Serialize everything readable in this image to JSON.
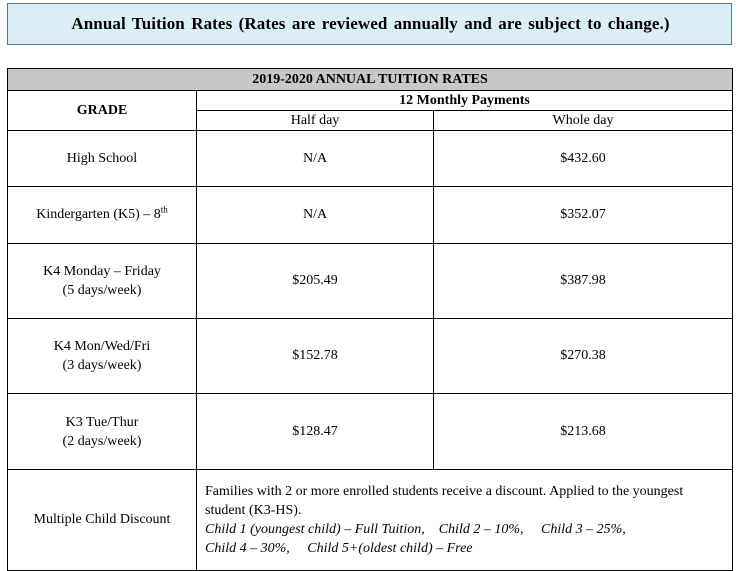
{
  "banner": {
    "title": "Annual  Tuition  Rates  (Rates are reviewed annually and are subject to change.)"
  },
  "table": {
    "title": "2019-2020 ANNUAL TUITION RATES",
    "grade_header": "GRADE",
    "payments_header": "12 Monthly Payments",
    "half_day_header": "Half day",
    "whole_day_header": "Whole day",
    "rows": [
      {
        "grade_line1": "High School",
        "grade_line2": "",
        "half": "N/A",
        "whole": "$432.60"
      },
      {
        "grade_line1": "Kindergarten (K5) – 8",
        "grade_sup": "th",
        "half": "N/A",
        "whole": "$352.07"
      },
      {
        "grade_line1": "K4 Monday – Friday",
        "grade_line2": "(5 days/week)",
        "half": "$205.49",
        "whole": "$387.98"
      },
      {
        "grade_line1": "K4 Mon/Wed/Fri",
        "grade_line2": "(3 days/week)",
        "half": "$152.78",
        "whole": "$270.38"
      },
      {
        "grade_line1": "K3 Tue/Thur",
        "grade_line2": "(2 days/week)",
        "half": "$128.47",
        "whole": "$213.68"
      }
    ],
    "discount": {
      "label": "Multiple Child Discount",
      "text": "Families with 2 or more enrolled students receive a discount. Applied to the youngest student (K3-HS).",
      "detail_line1": "Child 1 (youngest child) – Full Tuition,    Child 2 – 10%,     Child 3 – 25%,",
      "detail_line2": "Child 4 – 30%,     Child 5+(oldest child) – Free"
    }
  }
}
